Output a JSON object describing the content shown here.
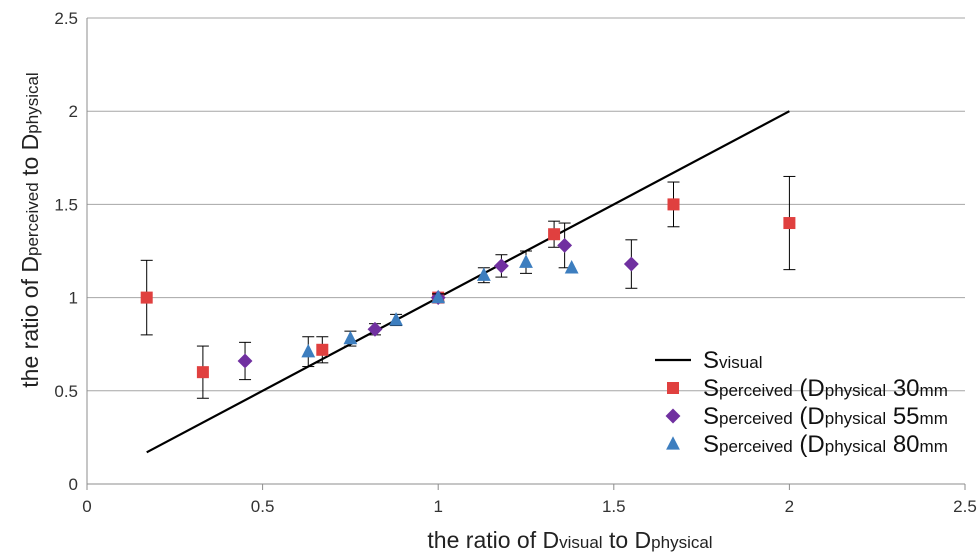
{
  "chart_data": {
    "type": "scatter",
    "title": "",
    "xlabel": "the ratio of Dvisual to Dphysical",
    "ylabel": "the ratio of Dperceived to Dphysical",
    "xlabel_parts": {
      "pre": "the ratio of D",
      "sub1": "visual",
      "mid": " to D",
      "sub2": "physical"
    },
    "ylabel_parts": {
      "pre": "the ratio of D",
      "sub1": "perceived",
      "mid": " to D",
      "sub2": "physical"
    },
    "xlim": [
      0,
      2.5
    ],
    "ylim": [
      0,
      2.5
    ],
    "xticks": [
      "0",
      "0.5",
      "1",
      "1.5",
      "2",
      "2.5"
    ],
    "yticks": [
      "0",
      "0.5",
      "1",
      "1.5",
      "2",
      "2.5"
    ],
    "grid": "horizontal",
    "legend_position": "bottom-right",
    "series": [
      {
        "name": "Svisual",
        "legend": {
          "main": "S",
          "sub": "visual",
          "rest": "",
          "sub2": "",
          "num": "",
          "unit": ""
        },
        "kind": "line",
        "color": "#000000",
        "points": [
          {
            "x": 0.17,
            "y": 0.17
          },
          {
            "x": 2.0,
            "y": 2.0
          }
        ]
      },
      {
        "name": "Sperceived (Dphysical 30mm",
        "legend": {
          "main": "S",
          "sub": "perceived",
          "rest": " (D",
          "sub2": "physical",
          "num": " 30",
          "unit": "mm"
        },
        "kind": "scatter",
        "marker": "square",
        "color": "#e0403f",
        "points": [
          {
            "x": 0.17,
            "y": 1.0,
            "err": 0.2
          },
          {
            "x": 0.33,
            "y": 0.6,
            "err": 0.14
          },
          {
            "x": 0.67,
            "y": 0.72,
            "err": 0.07
          },
          {
            "x": 1.0,
            "y": 1.0,
            "err": 0.02
          },
          {
            "x": 1.33,
            "y": 1.34,
            "err": 0.07
          },
          {
            "x": 1.67,
            "y": 1.5,
            "err": 0.12
          },
          {
            "x": 2.0,
            "y": 1.4,
            "err": 0.25
          }
        ]
      },
      {
        "name": "Sperceived (Dphysical 55mm",
        "legend": {
          "main": "S",
          "sub": "perceived",
          "rest": " (D",
          "sub2": "physical",
          "num": " 55",
          "unit": "mm"
        },
        "kind": "scatter",
        "marker": "diamond",
        "color": "#7030a0",
        "points": [
          {
            "x": 0.45,
            "y": 0.66,
            "err": 0.1
          },
          {
            "x": 0.82,
            "y": 0.83,
            "err": 0.03
          },
          {
            "x": 1.0,
            "y": 1.0,
            "err": 0.02
          },
          {
            "x": 1.18,
            "y": 1.17,
            "err": 0.06
          },
          {
            "x": 1.36,
            "y": 1.28,
            "err": 0.12
          },
          {
            "x": 1.55,
            "y": 1.18,
            "err": 0.13
          }
        ]
      },
      {
        "name": "Sperceived (Dphysical 80mm",
        "legend": {
          "main": "S",
          "sub": "perceived",
          "rest": " (D",
          "sub2": "physical",
          "num": " 80",
          "unit": "mm"
        },
        "kind": "scatter",
        "marker": "triangle",
        "color": "#3d7ebf",
        "points": [
          {
            "x": 0.63,
            "y": 0.71,
            "err": 0.08
          },
          {
            "x": 0.75,
            "y": 0.78,
            "err": 0.04
          },
          {
            "x": 0.88,
            "y": 0.88,
            "err": 0.03
          },
          {
            "x": 1.0,
            "y": 1.0,
            "err": 0.02
          },
          {
            "x": 1.13,
            "y": 1.12,
            "err": 0.04
          },
          {
            "x": 1.25,
            "y": 1.19,
            "err": 0.06
          },
          {
            "x": 1.38,
            "y": 1.16,
            "err": 0
          }
        ]
      }
    ]
  }
}
